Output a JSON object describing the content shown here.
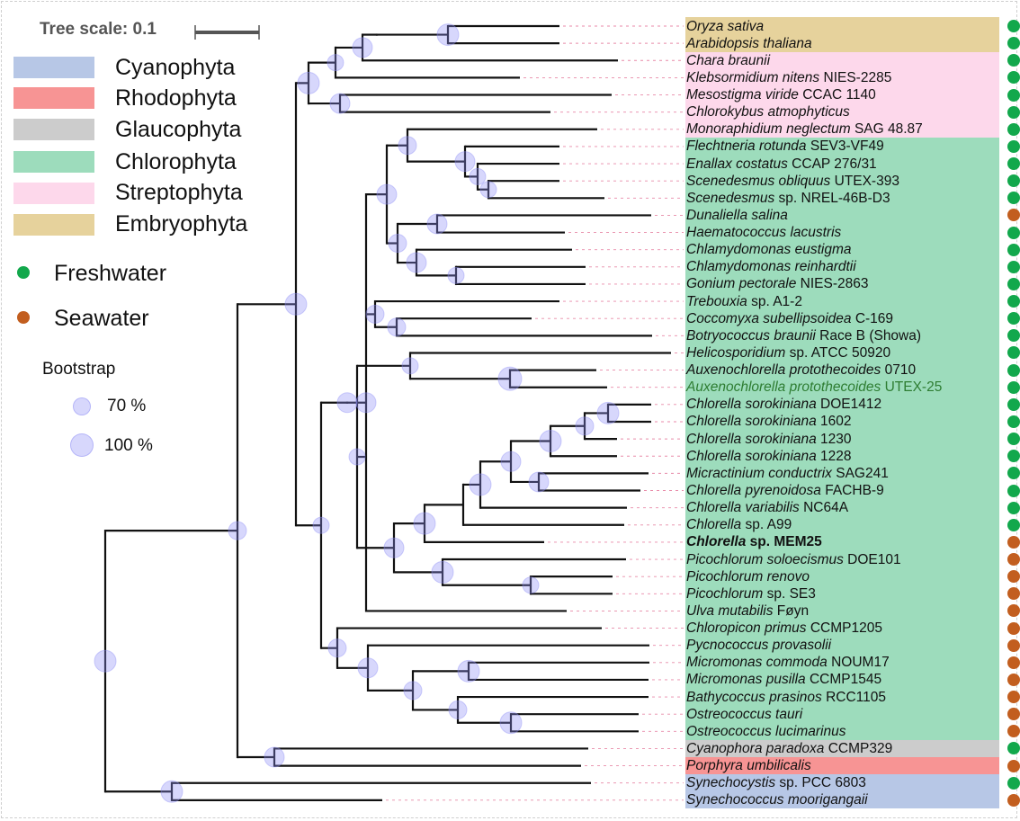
{
  "scale": {
    "label": "Tree scale: 0.1"
  },
  "colors": {
    "band_Cyanophyta": "#b7c7e6",
    "band_Rhodophyta": "#f79494",
    "band_Glaucophyta": "#cccccc",
    "band_Chlorophyta": "#9ddcbc",
    "band_Streptophyta": "#fdd8eb",
    "band_Embryophyta": "#e6d29c",
    "freshwater": "#12a84c",
    "seawater": "#c25e1f",
    "bootstrap": "#8c8cf5"
  },
  "legend": {
    "groups": [
      {
        "name": "Cyanophyta",
        "color": "#b7c7e6"
      },
      {
        "name": "Rhodophyta",
        "color": "#f79494"
      },
      {
        "name": "Glaucophyta",
        "color": "#cccccc"
      },
      {
        "name": "Chlorophyta",
        "color": "#9ddcbc"
      },
      {
        "name": "Streptophyta",
        "color": "#fdd8eb"
      },
      {
        "name": "Embryophyta",
        "color": "#e6d29c"
      }
    ],
    "habitats": [
      {
        "name": "Freshwater",
        "color": "#12a84c"
      },
      {
        "name": "Seawater",
        "color": "#c25e1f"
      }
    ],
    "bootstrap_title": "Bootstrap",
    "bootstrap_levels": [
      "70 %",
      "100 %"
    ]
  },
  "leaves": [
    {
      "genus": "Oryza sativa",
      "strain": "",
      "group": "Embryophyta",
      "habitat": "freshwater"
    },
    {
      "genus": "Arabidopsis thaliana",
      "strain": "",
      "group": "Embryophyta",
      "habitat": "freshwater"
    },
    {
      "genus": "Chara braunii",
      "strain": "",
      "group": "Streptophyta",
      "habitat": "freshwater"
    },
    {
      "genus": "Klebsormidium nitens",
      "strain": "NIES-2285",
      "group": "Streptophyta",
      "habitat": "freshwater"
    },
    {
      "genus": "Mesostigma viride",
      "strain": "CCAC 1140",
      "group": "Streptophyta",
      "habitat": "freshwater"
    },
    {
      "genus": "Chlorokybus atmophyticus",
      "strain": "",
      "group": "Streptophyta",
      "habitat": "freshwater"
    },
    {
      "genus": "Monoraphidium neglectum",
      "strain": "SAG 48.87",
      "group": "Streptophyta",
      "habitat": "freshwater"
    },
    {
      "genus": "Flechtneria rotunda",
      "strain": "SEV3-VF49",
      "group": "Chlorophyta",
      "habitat": "freshwater"
    },
    {
      "genus": "Enallax costatus",
      "strain": "CCAP 276/31",
      "group": "Chlorophyta",
      "habitat": "freshwater"
    },
    {
      "genus": "Scenedesmus obliquus",
      "strain": "UTEX-393",
      "group": "Chlorophyta",
      "habitat": "freshwater"
    },
    {
      "genus": "Scenedesmus",
      "strain": "sp. NREL-46B-D3",
      "group": "Chlorophyta",
      "habitat": "freshwater"
    },
    {
      "genus": "Dunaliella salina",
      "strain": "",
      "group": "Chlorophyta",
      "habitat": "seawater"
    },
    {
      "genus": "Haematococcus lacustris",
      "strain": "",
      "group": "Chlorophyta",
      "habitat": "freshwater"
    },
    {
      "genus": "Chlamydomonas eustigma",
      "strain": "",
      "group": "Chlorophyta",
      "habitat": "freshwater"
    },
    {
      "genus": "Chlamydomonas reinhardtii",
      "strain": "",
      "group": "Chlorophyta",
      "habitat": "freshwater"
    },
    {
      "genus": "Gonium pectorale",
      "strain": "NIES-2863",
      "group": "Chlorophyta",
      "habitat": "freshwater"
    },
    {
      "genus": "Trebouxia",
      "strain": "sp. A1-2",
      "group": "Chlorophyta",
      "habitat": "freshwater"
    },
    {
      "genus": "Coccomyxa subellipsoidea",
      "strain": "C-169",
      "group": "Chlorophyta",
      "habitat": "freshwater"
    },
    {
      "genus": "Botryococcus braunii",
      "strain": "Race B (Showa)",
      "group": "Chlorophyta",
      "habitat": "freshwater"
    },
    {
      "genus": "Helicosporidium",
      "strain": "sp. ATCC 50920",
      "group": "Chlorophyta",
      "habitat": "freshwater"
    },
    {
      "genus": "Auxenochlorella protothecoides",
      "strain": "0710",
      "group": "Chlorophyta",
      "habitat": "freshwater"
    },
    {
      "genus": "Auxenochlorella protothecoides",
      "strain": "UTEX-25",
      "group": "Chlorophyta",
      "habitat": "freshwater",
      "style": "green"
    },
    {
      "genus": "Chlorella sorokiniana",
      "strain": "DOE1412",
      "group": "Chlorophyta",
      "habitat": "freshwater"
    },
    {
      "genus": "Chlorella sorokiniana",
      "strain": "1602",
      "group": "Chlorophyta",
      "habitat": "freshwater"
    },
    {
      "genus": "Chlorella sorokiniana",
      "strain": "1230",
      "group": "Chlorophyta",
      "habitat": "freshwater"
    },
    {
      "genus": "Chlorella sorokiniana",
      "strain": "1228",
      "group": "Chlorophyta",
      "habitat": "freshwater"
    },
    {
      "genus": "Micractinium conductrix",
      "strain": "SAG241",
      "group": "Chlorophyta",
      "habitat": "freshwater"
    },
    {
      "genus": "Chlorella pyrenoidosa",
      "strain": "FACHB-9",
      "group": "Chlorophyta",
      "habitat": "freshwater"
    },
    {
      "genus": "Chlorella variabilis",
      "strain": "NC64A",
      "group": "Chlorophyta",
      "habitat": "freshwater"
    },
    {
      "genus": "Chlorella",
      "strain": "sp. A99",
      "group": "Chlorophyta",
      "habitat": "freshwater"
    },
    {
      "genus": "Chlorella",
      "strain": "sp. MEM25",
      "group": "Chlorophyta",
      "habitat": "seawater",
      "style": "bold"
    },
    {
      "genus": "Picochlorum soloecismus",
      "strain": "DOE101",
      "group": "Chlorophyta",
      "habitat": "seawater"
    },
    {
      "genus": "Picochlorum renovo",
      "strain": "",
      "group": "Chlorophyta",
      "habitat": "seawater"
    },
    {
      "genus": "Picochlorum",
      "strain": "sp. SE3",
      "group": "Chlorophyta",
      "habitat": "seawater"
    },
    {
      "genus": "Ulva mutabilis",
      "strain": "Føyn",
      "group": "Chlorophyta",
      "habitat": "seawater"
    },
    {
      "genus": "Chloropicon primus",
      "strain": "CCMP1205",
      "group": "Chlorophyta",
      "habitat": "seawater"
    },
    {
      "genus": "Pycnococcus provasolii",
      "strain": "",
      "group": "Chlorophyta",
      "habitat": "seawater"
    },
    {
      "genus": "Micromonas commoda",
      "strain": "NOUM17",
      "group": "Chlorophyta",
      "habitat": "seawater"
    },
    {
      "genus": "Micromonas pusilla",
      "strain": "CCMP1545",
      "group": "Chlorophyta",
      "habitat": "seawater"
    },
    {
      "genus": "Bathycoccus prasinos",
      "strain": "RCC1105",
      "group": "Chlorophyta",
      "habitat": "seawater"
    },
    {
      "genus": "Ostreococcus tauri",
      "strain": "",
      "group": "Chlorophyta",
      "habitat": "seawater"
    },
    {
      "genus": "Ostreococcus lucimarinus",
      "strain": "",
      "group": "Chlorophyta",
      "habitat": "seawater"
    },
    {
      "genus": "Cyanophora paradoxa",
      "strain": "CCMP329",
      "group": "Glaucophyta",
      "habitat": "freshwater"
    },
    {
      "genus": "Porphyra umbilicalis",
      "strain": "",
      "group": "Rhodophyta",
      "habitat": "seawater"
    },
    {
      "genus": "Synechocystis",
      "strain": "sp. PCC 6803",
      "group": "Cyanophyta",
      "habitat": "freshwater"
    },
    {
      "genus": "Synechococcus moorigangaii",
      "strain": "",
      "group": "Cyanophyta",
      "habitat": "seawater"
    }
  ]
}
